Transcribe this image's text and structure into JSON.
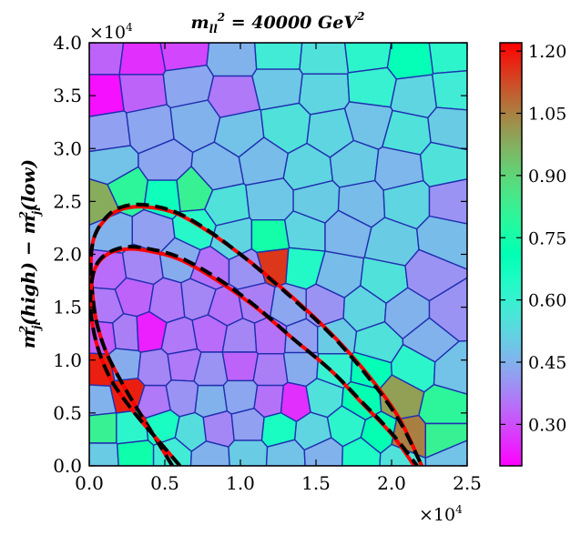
{
  "chart_data": {
    "type": "heatmap",
    "subtype": "voronoi-tessellation",
    "title": "m_ll^2 = 40000 GeV^2",
    "title_parts": {
      "main": "m",
      "sub": "ll",
      "sup": "2",
      "rest": " = 40000 ",
      "unit": "GeV",
      "unit_sup": "2"
    },
    "xlabel": "",
    "ylabel": "m_jl^2(high) − m_jl^2(low)",
    "ylabel_parts": [
      "m",
      "jl",
      "2",
      "(high) − m",
      "jl",
      "2",
      "(low)"
    ],
    "xlim": [
      0,
      25000
    ],
    "ylim": [
      0,
      40000
    ],
    "x_multiplier": "×10^4",
    "y_multiplier": "×10^4",
    "x_ticks": [
      {
        "value": 0,
        "label": "0.0"
      },
      {
        "value": 5000,
        "label": "0.5"
      },
      {
        "value": 10000,
        "label": "1.0"
      },
      {
        "value": 15000,
        "label": "1.5"
      },
      {
        "value": 20000,
        "label": "2.0"
      },
      {
        "value": 25000,
        "label": "2.5"
      }
    ],
    "y_ticks": [
      {
        "value": 0,
        "label": "0.0"
      },
      {
        "value": 5000,
        "label": "0.5"
      },
      {
        "value": 10000,
        "label": "1.0"
      },
      {
        "value": 15000,
        "label": "1.5"
      },
      {
        "value": 20000,
        "label": "2.0"
      },
      {
        "value": 25000,
        "label": "2.5"
      },
      {
        "value": 30000,
        "label": "3.0"
      },
      {
        "value": 35000,
        "label": "3.5"
      },
      {
        "value": 40000,
        "label": "4.0"
      }
    ],
    "colorbar": {
      "cmap": "rainbow",
      "range": [
        0.2,
        1.22
      ],
      "ticks": [
        {
          "value": 0.3,
          "label": "0.30"
        },
        {
          "value": 0.45,
          "label": "0.45"
        },
        {
          "value": 0.6,
          "label": "0.60"
        },
        {
          "value": 0.75,
          "label": "0.75"
        },
        {
          "value": 0.9,
          "label": "0.90"
        },
        {
          "value": 1.05,
          "label": "1.05"
        },
        {
          "value": 1.2,
          "label": "1.20"
        }
      ]
    },
    "cells": [
      {
        "x": 800,
        "y": 39000,
        "v": 0.33
      },
      {
        "x": 3500,
        "y": 38500,
        "v": 0.26
      },
      {
        "x": 6200,
        "y": 39200,
        "v": 0.29
      },
      {
        "x": 9500,
        "y": 38700,
        "v": 0.45
      },
      {
        "x": 12500,
        "y": 39000,
        "v": 0.58
      },
      {
        "x": 15500,
        "y": 38600,
        "v": 0.55
      },
      {
        "x": 18500,
        "y": 39100,
        "v": 0.62
      },
      {
        "x": 21200,
        "y": 38500,
        "v": 0.7
      },
      {
        "x": 24000,
        "y": 39000,
        "v": 0.62
      },
      {
        "x": 800,
        "y": 35000,
        "v": 0.22
      },
      {
        "x": 3500,
        "y": 35500,
        "v": 0.33
      },
      {
        "x": 6500,
        "y": 36000,
        "v": 0.43
      },
      {
        "x": 9500,
        "y": 35000,
        "v": 0.36
      },
      {
        "x": 12500,
        "y": 36000,
        "v": 0.49
      },
      {
        "x": 15500,
        "y": 35500,
        "v": 0.52
      },
      {
        "x": 18800,
        "y": 35800,
        "v": 0.6
      },
      {
        "x": 21500,
        "y": 35000,
        "v": 0.52
      },
      {
        "x": 24200,
        "y": 35500,
        "v": 0.58
      },
      {
        "x": 1200,
        "y": 31500,
        "v": 0.42
      },
      {
        "x": 4000,
        "y": 32000,
        "v": 0.43
      },
      {
        "x": 7000,
        "y": 32500,
        "v": 0.45
      },
      {
        "x": 10000,
        "y": 31500,
        "v": 0.48
      },
      {
        "x": 13000,
        "y": 32000,
        "v": 0.55
      },
      {
        "x": 16000,
        "y": 31500,
        "v": 0.52
      },
      {
        "x": 18500,
        "y": 32500,
        "v": 0.48
      },
      {
        "x": 21000,
        "y": 31500,
        "v": 0.55
      },
      {
        "x": 24000,
        "y": 32000,
        "v": 0.5
      },
      {
        "x": 1500,
        "y": 28500,
        "v": 0.48
      },
      {
        "x": 5000,
        "y": 28500,
        "v": 0.43
      },
      {
        "x": 8500,
        "y": 28000,
        "v": 0.46
      },
      {
        "x": 11500,
        "y": 28800,
        "v": 0.47
      },
      {
        "x": 14500,
        "y": 28000,
        "v": 0.52
      },
      {
        "x": 17500,
        "y": 28500,
        "v": 0.5
      },
      {
        "x": 20500,
        "y": 28000,
        "v": 0.46
      },
      {
        "x": 23500,
        "y": 28500,
        "v": 0.55
      },
      {
        "x": 700,
        "y": 24800,
        "v": 0.98
      },
      {
        "x": 2500,
        "y": 26000,
        "v": 0.8
      },
      {
        "x": 5000,
        "y": 25500,
        "v": 0.68
      },
      {
        "x": 6800,
        "y": 25800,
        "v": 0.82
      },
      {
        "x": 9000,
        "y": 24500,
        "v": 0.55
      },
      {
        "x": 12000,
        "y": 25000,
        "v": 0.49
      },
      {
        "x": 15000,
        "y": 25000,
        "v": 0.5
      },
      {
        "x": 18000,
        "y": 24800,
        "v": 0.47
      },
      {
        "x": 21000,
        "y": 25000,
        "v": 0.52
      },
      {
        "x": 24000,
        "y": 25000,
        "v": 0.4
      },
      {
        "x": 1500,
        "y": 22000,
        "v": 0.45
      },
      {
        "x": 4200,
        "y": 22000,
        "v": 0.42
      },
      {
        "x": 7000,
        "y": 22500,
        "v": 0.63
      },
      {
        "x": 9500,
        "y": 21500,
        "v": 0.52
      },
      {
        "x": 12000,
        "y": 21500,
        "v": 0.75
      },
      {
        "x": 14200,
        "y": 22000,
        "v": 0.52
      },
      {
        "x": 17000,
        "y": 22000,
        "v": 0.46
      },
      {
        "x": 20000,
        "y": 21000,
        "v": 0.5
      },
      {
        "x": 23500,
        "y": 21500,
        "v": 0.47
      },
      {
        "x": 1200,
        "y": 18500,
        "v": 0.34
      },
      {
        "x": 3500,
        "y": 19000,
        "v": 0.38
      },
      {
        "x": 6000,
        "y": 19500,
        "v": 0.44
      },
      {
        "x": 8000,
        "y": 18500,
        "v": 0.35
      },
      {
        "x": 10500,
        "y": 18500,
        "v": 0.4
      },
      {
        "x": 12200,
        "y": 19200,
        "v": 1.15
      },
      {
        "x": 14000,
        "y": 19000,
        "v": 0.64
      },
      {
        "x": 16500,
        "y": 18000,
        "v": 0.47
      },
      {
        "x": 19500,
        "y": 17500,
        "v": 0.55
      },
      {
        "x": 22500,
        "y": 18000,
        "v": 0.4
      },
      {
        "x": 1000,
        "y": 15000,
        "v": 0.36
      },
      {
        "x": 3000,
        "y": 16000,
        "v": 0.33
      },
      {
        "x": 5200,
        "y": 15500,
        "v": 0.36
      },
      {
        "x": 7200,
        "y": 15800,
        "v": 0.38
      },
      {
        "x": 9000,
        "y": 15000,
        "v": 0.35
      },
      {
        "x": 11000,
        "y": 15500,
        "v": 0.37
      },
      {
        "x": 13200,
        "y": 15000,
        "v": 0.43
      },
      {
        "x": 15500,
        "y": 15000,
        "v": 0.4
      },
      {
        "x": 18200,
        "y": 14800,
        "v": 0.52
      },
      {
        "x": 21000,
        "y": 14500,
        "v": 0.45
      },
      {
        "x": 24000,
        "y": 14500,
        "v": 0.4
      },
      {
        "x": 800,
        "y": 12200,
        "v": 0.32
      },
      {
        "x": 2500,
        "y": 12500,
        "v": 0.37
      },
      {
        "x": 3900,
        "y": 12600,
        "v": 0.24
      },
      {
        "x": 6000,
        "y": 12000,
        "v": 0.36
      },
      {
        "x": 8000,
        "y": 12500,
        "v": 0.34
      },
      {
        "x": 10000,
        "y": 12000,
        "v": 0.38
      },
      {
        "x": 12000,
        "y": 12200,
        "v": 0.35
      },
      {
        "x": 14000,
        "y": 12000,
        "v": 0.42
      },
      {
        "x": 16200,
        "y": 12000,
        "v": 0.5
      },
      {
        "x": 19000,
        "y": 11500,
        "v": 0.55
      },
      {
        "x": 22500,
        "y": 11800,
        "v": 0.45
      },
      {
        "x": 700,
        "y": 9000,
        "v": 1.18
      },
      {
        "x": 2300,
        "y": 9500,
        "v": 0.44
      },
      {
        "x": 4300,
        "y": 9200,
        "v": 0.38
      },
      {
        "x": 6300,
        "y": 9600,
        "v": 0.36
      },
      {
        "x": 8000,
        "y": 9000,
        "v": 0.4
      },
      {
        "x": 10000,
        "y": 9500,
        "v": 0.33
      },
      {
        "x": 12000,
        "y": 9000,
        "v": 0.37
      },
      {
        "x": 14000,
        "y": 9400,
        "v": 0.44
      },
      {
        "x": 16200,
        "y": 9200,
        "v": 0.6
      },
      {
        "x": 18500,
        "y": 9000,
        "v": 0.7
      },
      {
        "x": 21500,
        "y": 9200,
        "v": 0.62
      },
      {
        "x": 24200,
        "y": 9000,
        "v": 0.48
      },
      {
        "x": 600,
        "y": 6200,
        "v": 0.45
      },
      {
        "x": 2500,
        "y": 6800,
        "v": 1.18
      },
      {
        "x": 4300,
        "y": 6000,
        "v": 0.36
      },
      {
        "x": 6200,
        "y": 6500,
        "v": 0.4
      },
      {
        "x": 8000,
        "y": 6200,
        "v": 0.45
      },
      {
        "x": 10000,
        "y": 6600,
        "v": 0.43
      },
      {
        "x": 12000,
        "y": 6200,
        "v": 0.35
      },
      {
        "x": 13500,
        "y": 6000,
        "v": 0.26
      },
      {
        "x": 15500,
        "y": 6500,
        "v": 0.55
      },
      {
        "x": 18000,
        "y": 6200,
        "v": 0.72
      },
      {
        "x": 20500,
        "y": 6500,
        "v": 1.0
      },
      {
        "x": 23500,
        "y": 5500,
        "v": 0.8
      },
      {
        "x": 800,
        "y": 3500,
        "v": 0.82
      },
      {
        "x": 2800,
        "y": 3500,
        "v": 0.62
      },
      {
        "x": 4800,
        "y": 3800,
        "v": 0.66
      },
      {
        "x": 6800,
        "y": 3200,
        "v": 0.54
      },
      {
        "x": 8500,
        "y": 3500,
        "v": 0.38
      },
      {
        "x": 10500,
        "y": 3800,
        "v": 0.42
      },
      {
        "x": 12500,
        "y": 3500,
        "v": 0.66
      },
      {
        "x": 14800,
        "y": 3200,
        "v": 0.52
      },
      {
        "x": 17000,
        "y": 3800,
        "v": 0.62
      },
      {
        "x": 19200,
        "y": 3000,
        "v": 0.72
      },
      {
        "x": 21000,
        "y": 2500,
        "v": 1.05
      },
      {
        "x": 23500,
        "y": 2500,
        "v": 0.82
      },
      {
        "x": 800,
        "y": 800,
        "v": 0.5
      },
      {
        "x": 3000,
        "y": 1000,
        "v": 0.74
      },
      {
        "x": 5500,
        "y": 1000,
        "v": 0.58
      },
      {
        "x": 8000,
        "y": 800,
        "v": 0.45
      },
      {
        "x": 10500,
        "y": 1000,
        "v": 0.5
      },
      {
        "x": 13000,
        "y": 800,
        "v": 0.48
      },
      {
        "x": 15500,
        "y": 1000,
        "v": 0.45
      },
      {
        "x": 18000,
        "y": 900,
        "v": 0.65
      },
      {
        "x": 20500,
        "y": 700,
        "v": 0.55
      },
      {
        "x": 24000,
        "y": 800,
        "v": 0.48
      }
    ],
    "series": [
      {
        "style": "red-solid",
        "color": "#ff0000",
        "x": [
          5500,
          4000,
          2500,
          1200,
          500,
          200,
          100,
          300,
          1000,
          2000,
          3500,
          5500,
          7500,
          10000,
          13000,
          16000,
          18500,
          20500,
          22000
        ],
        "y": [
          0,
          3500,
          7000,
          10500,
          13500,
          16500,
          19000,
          21500,
          23200,
          24200,
          24500,
          24000,
          22500,
          20000,
          16500,
          12500,
          8500,
          4500,
          0
        ]
      },
      {
        "style": "black-dashed",
        "color": "#000000",
        "x": [
          5500,
          4000,
          2500,
          1200,
          500,
          200,
          100,
          300,
          1000,
          2000,
          3500,
          5500,
          7500,
          10000,
          13000,
          16000,
          18500,
          20500,
          22000
        ],
        "y": [
          0,
          3500,
          7000,
          10500,
          13500,
          16500,
          19000,
          21500,
          23300,
          24400,
          24700,
          24100,
          22600,
          20000,
          16400,
          12400,
          8300,
          4300,
          0
        ]
      },
      {
        "style": "red-solid",
        "color": "#ff0000",
        "x": [
          6000,
          4500,
          3000,
          1500,
          600,
          150,
          100,
          400,
          1200,
          2500,
          4000,
          6000,
          8500,
          11000,
          13500,
          16000,
          18000,
          20000,
          21500
        ],
        "y": [
          0,
          2500,
          5000,
          8000,
          11000,
          14000,
          16500,
          18700,
          20000,
          20500,
          20300,
          19500,
          17500,
          15000,
          12000,
          9000,
          6000,
          3000,
          0
        ]
      },
      {
        "style": "black-dashed",
        "color": "#000000",
        "x": [
          6000,
          4500,
          3000,
          1500,
          600,
          150,
          100,
          400,
          1200,
          2500,
          4000,
          6000,
          8500,
          11000,
          13500,
          16000,
          18000,
          20000,
          21700
        ],
        "y": [
          0,
          2500,
          5000,
          8000,
          11000,
          14000,
          16500,
          18800,
          20100,
          20700,
          20500,
          19700,
          17700,
          15100,
          12000,
          9000,
          6100,
          3100,
          0
        ]
      }
    ]
  }
}
